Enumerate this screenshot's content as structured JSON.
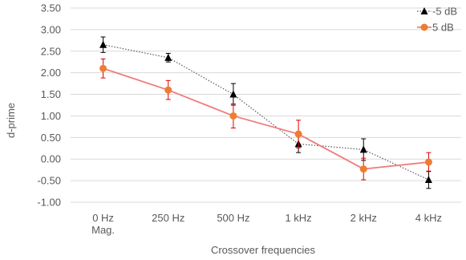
{
  "chart_data": {
    "type": "line",
    "title": "",
    "xlabel": "Crossover frequencies",
    "ylabel": "d-prime",
    "categories": [
      [
        "0 Hz",
        "Mag."
      ],
      [
        "250 Hz"
      ],
      [
        "500 Hz"
      ],
      [
        "1 kHz"
      ],
      [
        "2 kHz"
      ],
      [
        "4 kHz"
      ]
    ],
    "ylim": [
      -1.0,
      3.5
    ],
    "yticks": [
      "3.50",
      "3.00",
      "2.50",
      "2.00",
      "1.50",
      "1.00",
      "0.50",
      "0.00",
      "-0.50",
      "-1.00"
    ],
    "grid": true,
    "legend_position": "top-right",
    "series": [
      {
        "name": "-5 dB",
        "values": [
          2.65,
          2.35,
          1.5,
          0.35,
          0.22,
          -0.48
        ],
        "errors": [
          0.18,
          0.1,
          0.25,
          0.2,
          0.25,
          0.2
        ],
        "color": "#000000",
        "error_color": "#000000",
        "marker": "triangle",
        "line_style": "dotted"
      },
      {
        "name": "5 dB",
        "values": [
          2.1,
          1.6,
          1.0,
          0.58,
          -0.23,
          -0.07
        ],
        "errors": [
          0.22,
          0.22,
          0.28,
          0.32,
          0.25,
          0.22
        ],
        "color": "#f07b7b",
        "marker_color": "#ed7d31",
        "error_color": "#e00000",
        "marker": "circle",
        "line_style": "solid"
      }
    ]
  }
}
